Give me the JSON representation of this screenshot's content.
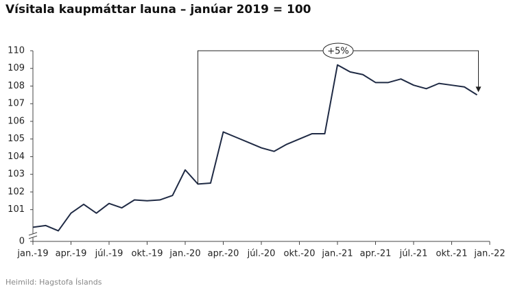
{
  "chart_data": {
    "type": "line",
    "title": "Vísitala kaupmáttar launa – janúar 2019 = 100",
    "source": "Heimild: Hagstofa Íslands",
    "x": [
      0,
      1,
      2,
      3,
      4,
      5,
      6,
      7,
      8,
      9,
      10,
      11,
      12,
      13,
      14,
      15,
      16,
      17,
      18,
      19,
      20,
      21,
      22,
      23,
      24,
      25,
      26,
      27,
      28,
      29,
      30,
      31,
      32,
      33,
      34,
      35
    ],
    "series": [
      {
        "name": "Vísitala kaupmáttar launa",
        "color": "#1f2a44",
        "values": [
          100.0,
          100.1,
          99.8,
          100.8,
          101.3,
          100.8,
          101.35,
          101.1,
          101.55,
          101.5,
          101.55,
          101.8,
          103.25,
          102.45,
          102.5,
          105.4,
          105.1,
          104.8,
          104.5,
          104.3,
          104.7,
          105.0,
          105.3,
          105.3,
          109.2,
          108.8,
          108.65,
          108.2,
          108.2,
          108.4,
          108.05,
          107.85,
          108.15,
          108.05,
          107.95,
          107.5
        ]
      }
    ],
    "xlim": [
      0,
      36
    ],
    "xticks": [
      {
        "value": 0,
        "label": "jan.-19"
      },
      {
        "value": 3,
        "label": "apr.-19"
      },
      {
        "value": 6,
        "label": "júl.-19"
      },
      {
        "value": 9,
        "label": "okt.-19"
      },
      {
        "value": 12,
        "label": "jan.-20"
      },
      {
        "value": 15,
        "label": "apr.-20"
      },
      {
        "value": 18,
        "label": "júl.-20"
      },
      {
        "value": 21,
        "label": "okt.-20"
      },
      {
        "value": 24,
        "label": "jan.-21"
      },
      {
        "value": 27,
        "label": "apr.-21"
      },
      {
        "value": 30,
        "label": "júl.-21"
      },
      {
        "value": 33,
        "label": "okt.-21"
      },
      {
        "value": 36,
        "label": "jan.-22"
      }
    ],
    "ylim": [
      0,
      110
    ],
    "y_break": [
      0,
      99.2
    ],
    "yticks": [
      0,
      101,
      102,
      103,
      104,
      105,
      106,
      107,
      108,
      109,
      110
    ],
    "grid": false,
    "annotations": [
      {
        "label": "+5%",
        "from_x": 13,
        "to_x": 35
      }
    ]
  }
}
